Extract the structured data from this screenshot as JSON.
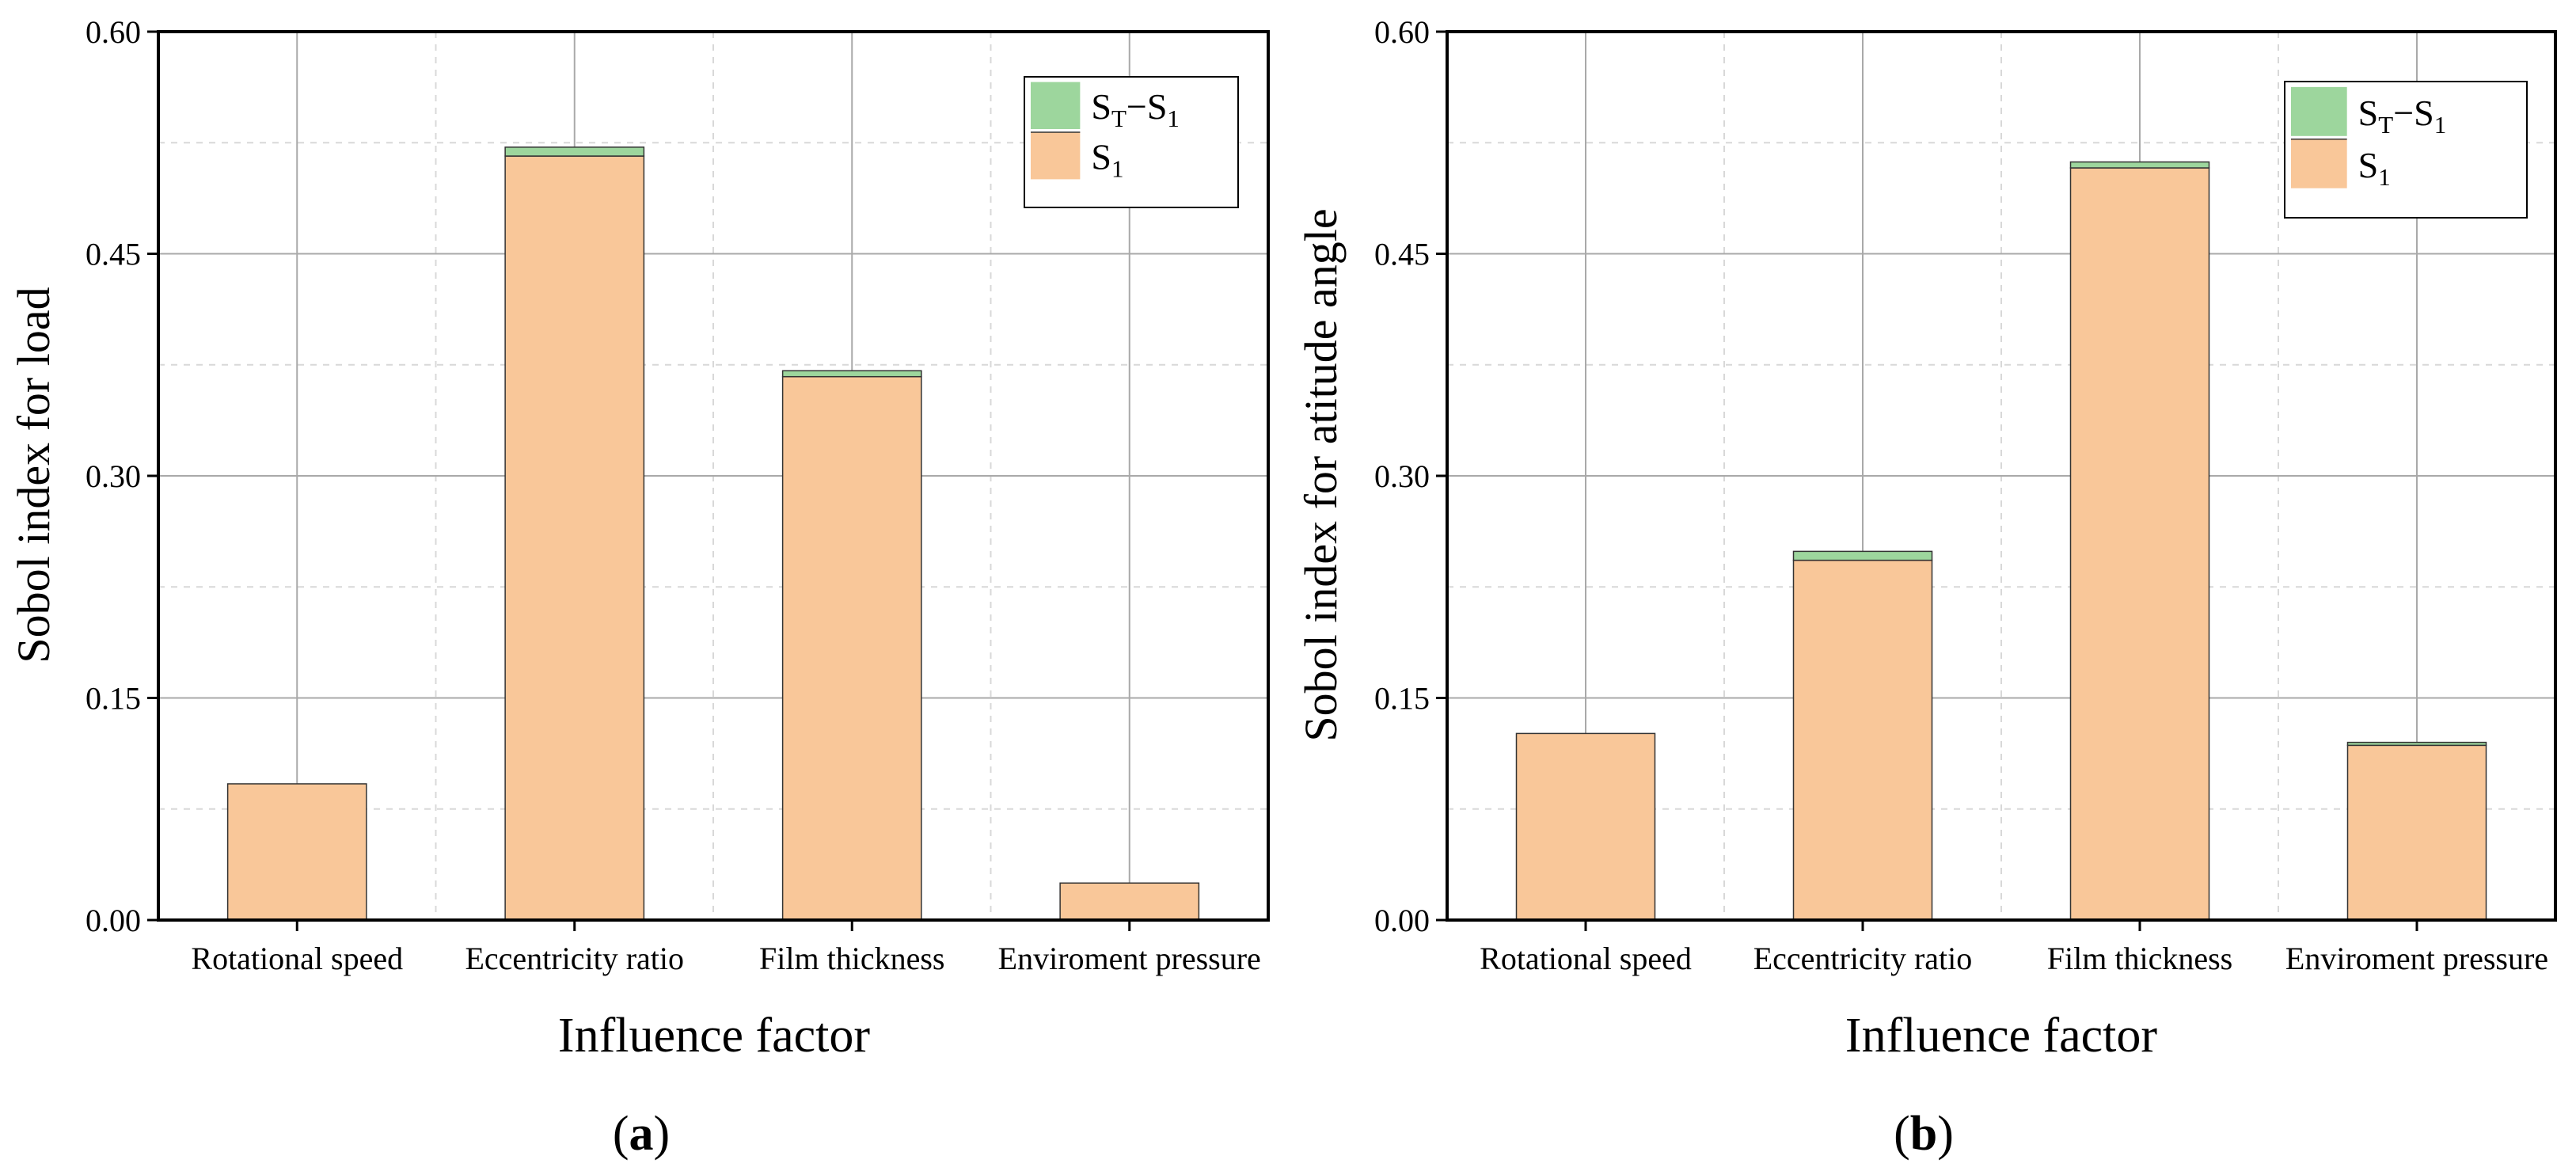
{
  "chart_data": [
    {
      "type": "bar",
      "stacked": true,
      "panel_label": {
        "open": "(",
        "letter": "a",
        "close": ")"
      },
      "xlabel": "Influence factor",
      "ylabel": "Sobol index for load",
      "ylim": [
        0,
        0.6
      ],
      "yticks": [
        "0.00",
        "0.15",
        "0.30",
        "0.45",
        "0.60"
      ],
      "ytick_values": [
        0,
        0.15,
        0.3,
        0.45,
        0.6
      ],
      "grid": true,
      "legend_position": "top-right",
      "categories": [
        "Rotational speed",
        "Eccentricity ratio",
        "Film thickness",
        "Enviroment pressure"
      ],
      "series": [
        {
          "name": "S1",
          "label_main": "S",
          "label_sub": "1",
          "color": "#f9c799",
          "values": [
            0.092,
            0.516,
            0.367,
            0.025
          ]
        },
        {
          "name": "ST−S1",
          "label_main": "S",
          "label_sub": "T",
          "label_mid": "−S",
          "label_sub2": "1",
          "color": "#9dd69d",
          "values": [
            0.0,
            0.006,
            0.004,
            0.0
          ]
        }
      ]
    },
    {
      "type": "bar",
      "stacked": true,
      "panel_label": {
        "open": "(",
        "letter": "b",
        "close": ")"
      },
      "xlabel": "Influence factor",
      "ylabel": "Sobol index for atitude angle",
      "ylim": [
        0,
        0.6
      ],
      "yticks": [
        "0.00",
        "0.15",
        "0.30",
        "0.45",
        "0.60"
      ],
      "ytick_values": [
        0,
        0.15,
        0.3,
        0.45,
        0.6
      ],
      "grid": true,
      "legend_position": "top-right",
      "categories": [
        "Rotational speed",
        "Eccentricity ratio",
        "Film thickness",
        "Enviroment pressure"
      ],
      "series": [
        {
          "name": "S1",
          "label_main": "S",
          "label_sub": "1",
          "color": "#f9c799",
          "values": [
            0.126,
            0.243,
            0.508,
            0.118
          ]
        },
        {
          "name": "ST−S1",
          "label_main": "S",
          "label_sub": "T",
          "label_mid": "−S",
          "label_sub2": "1",
          "color": "#9dd69d",
          "values": [
            0.0,
            0.006,
            0.004,
            0.002
          ]
        }
      ]
    }
  ]
}
